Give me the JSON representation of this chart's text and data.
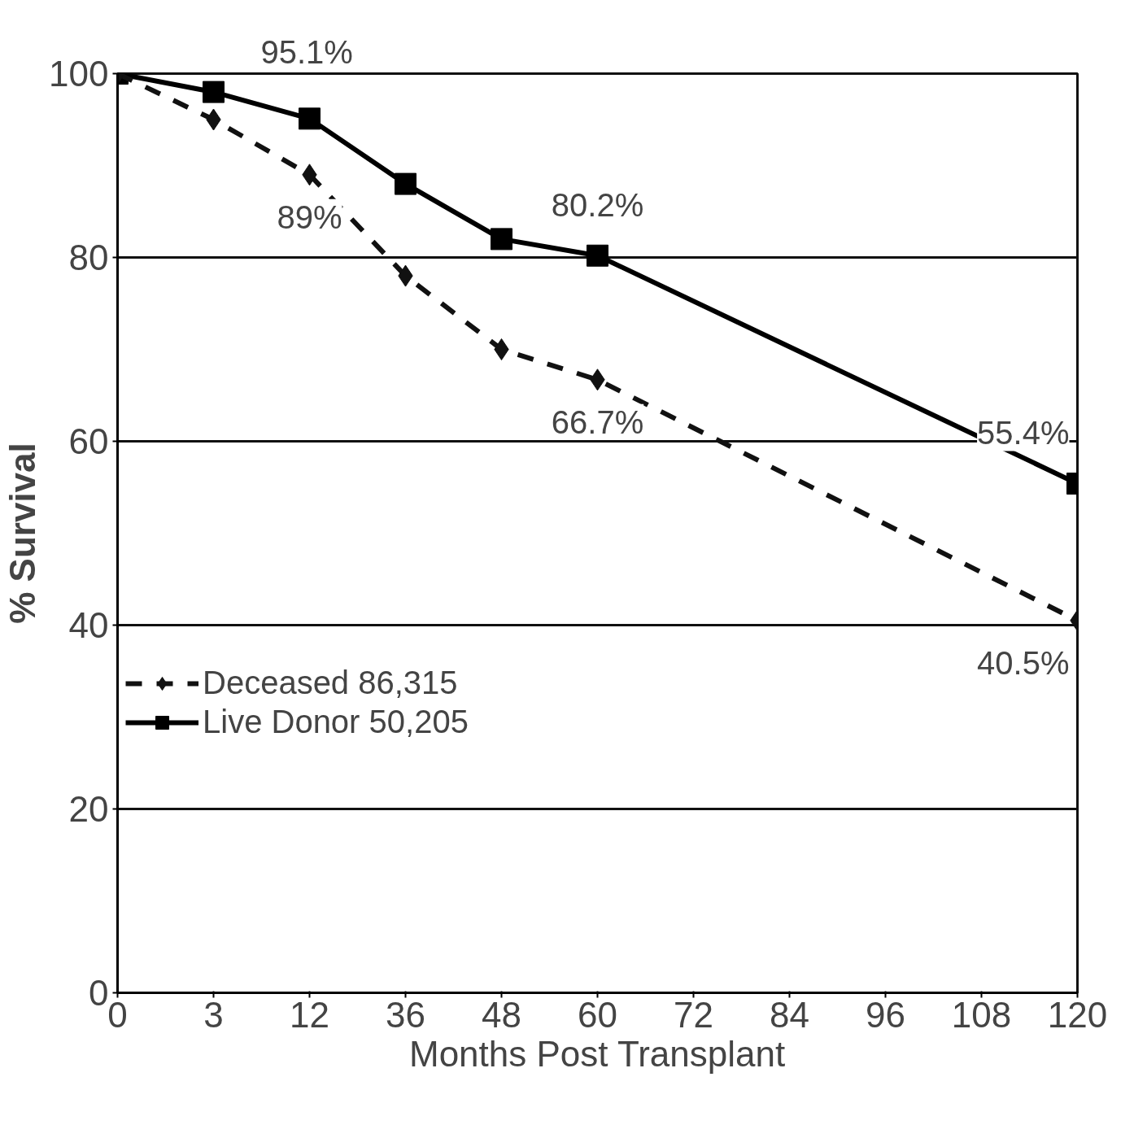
{
  "chart_data": {
    "type": "line",
    "xlabel": "Months Post Transplant",
    "ylabel": "% Survival",
    "categories": [
      "0",
      "3",
      "12",
      "36",
      "48",
      "60",
      "72",
      "84",
      "96",
      "108",
      "120"
    ],
    "series": [
      {
        "name": "Deceased 86,315",
        "color": "#111111",
        "marker": "diamond",
        "line_style": "dashed",
        "values": [
          100,
          95,
          89,
          78,
          70,
          66.7,
          null,
          null,
          null,
          null,
          40.5
        ]
      },
      {
        "name": "Live Donor 50,205",
        "color": "#000000",
        "marker": "square",
        "line_style": "solid",
        "values": [
          100,
          98,
          95.1,
          88,
          82,
          80.2,
          null,
          null,
          null,
          null,
          55.4
        ]
      }
    ],
    "ylim": [
      0,
      100
    ],
    "yticks": [
      0,
      20,
      40,
      60,
      80,
      100
    ],
    "grid": "y",
    "legend": "bottom left",
    "annotations": [
      {
        "text": "95.1%",
        "x": "12",
        "y": 95.1
      },
      {
        "text": "89%",
        "x": "12",
        "y": 89
      },
      {
        "text": "80.2%",
        "x": "60",
        "y": 80.2
      },
      {
        "text": "66.7%",
        "x": "60",
        "y": 66.7
      },
      {
        "text": "55.4%",
        "x": "120",
        "y": 55.4
      },
      {
        "text": "40.5%",
        "x": "120",
        "y": 40.5
      }
    ]
  }
}
